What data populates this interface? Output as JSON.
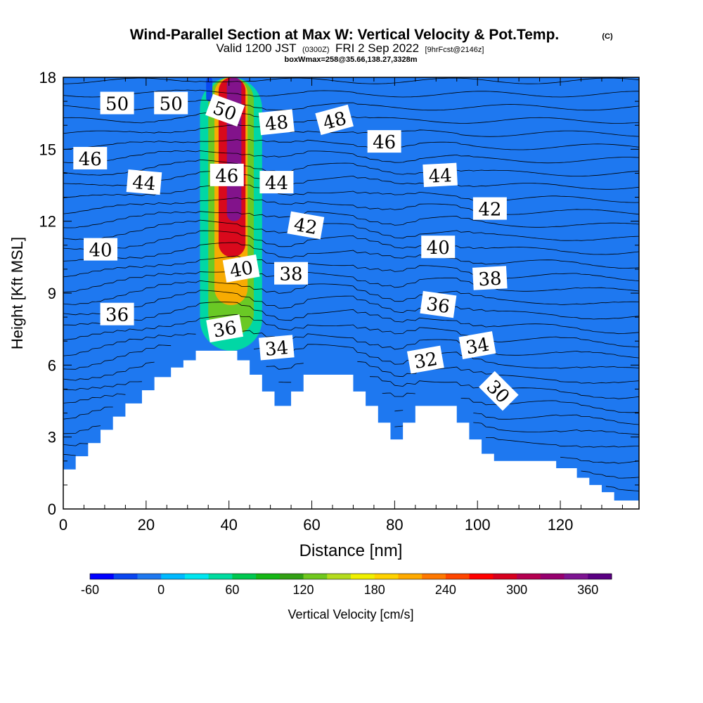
{
  "chart_data": {
    "type": "heatmap",
    "title": "Wind-Parallel Section at Max W: Vertical Velocity & Pot.Temp.",
    "title_mark": "(C)",
    "subtitle_main": "Valid 1200 JST",
    "subtitle_utc": "(0300Z)",
    "subtitle_date": "FRI 2 Sep 2022",
    "subtitle_fcst": "[9hrFcst@2146z]",
    "subtitle_box": "boxWmax=258@35.66,138.27,3328m",
    "xlabel": "Distance [nm]",
    "ylabel": "Height [Kft MSL]",
    "xlim": [
      0,
      139
    ],
    "ylim": [
      0,
      18
    ],
    "x_ticks": [
      0,
      20,
      40,
      60,
      80,
      100,
      120
    ],
    "y_ticks": [
      0,
      3,
      6,
      9,
      12,
      15,
      18
    ],
    "colorbar": {
      "label": "Vertical Velocity [cm/s]",
      "min": -60,
      "max": 380,
      "step": 20,
      "tick_values": [
        -60,
        0,
        60,
        120,
        180,
        240,
        300,
        360
      ],
      "colors": [
        "#0000ff",
        "#0a46f0",
        "#1e78f0",
        "#00b9ff",
        "#00e6f0",
        "#00dca0",
        "#00c850",
        "#16b716",
        "#32a014",
        "#70c81e",
        "#b4dc1e",
        "#f0f000",
        "#ffd200",
        "#ffaa00",
        "#ff7800",
        "#ff4600",
        "#ff0000",
        "#d7001e",
        "#b40050",
        "#96006e",
        "#7d1491",
        "#5a0082"
      ]
    },
    "vertical_velocity_field": {
      "background": "#1e78f0",
      "regions": [
        {
          "name": "updraft-edge",
          "value_cms": 40,
          "x": [
            33,
            48
          ],
          "y": [
            6.6,
            18
          ]
        },
        {
          "name": "updraft-inner",
          "value_cms": 120,
          "x": [
            35,
            46
          ],
          "y": [
            7.2,
            18
          ]
        },
        {
          "name": "updraft-mid",
          "value_cms": 200,
          "x": [
            36.5,
            44.5
          ],
          "y": [
            8.5,
            18
          ]
        },
        {
          "name": "updraft-strong",
          "value_cms": 280,
          "x": [
            37.5,
            44
          ],
          "y": [
            10.5,
            18
          ]
        },
        {
          "name": "updraft-core",
          "value_cms": 340,
          "x": [
            39.5,
            43
          ],
          "y": [
            12,
            18
          ]
        },
        {
          "name": "downdraft-edge",
          "value_cms": -40,
          "x": [
            34.5,
            36
          ],
          "y": [
            17,
            18
          ]
        }
      ]
    },
    "potential_temperature_contour_labels": [
      {
        "text": "50",
        "x": 13,
        "y": 16.9,
        "angle": 0
      },
      {
        "text": "50",
        "x": 26,
        "y": 16.9,
        "angle": 0
      },
      {
        "text": "50",
        "x": 39,
        "y": 16.6,
        "angle": 20
      },
      {
        "text": "48",
        "x": 51.5,
        "y": 16.1,
        "angle": -6
      },
      {
        "text": "48",
        "x": 65.5,
        "y": 16.2,
        "angle": -15
      },
      {
        "text": "46",
        "x": 77.5,
        "y": 15.3,
        "angle": 0
      },
      {
        "text": "46",
        "x": 6.5,
        "y": 14.6,
        "angle": 0
      },
      {
        "text": "44",
        "x": 19.5,
        "y": 13.6,
        "angle": 5
      },
      {
        "text": "46",
        "x": 39.5,
        "y": 13.9,
        "angle": 0
      },
      {
        "text": "44",
        "x": 51.5,
        "y": 13.6,
        "angle": 0
      },
      {
        "text": "44",
        "x": 91,
        "y": 13.9,
        "angle": -3
      },
      {
        "text": "42",
        "x": 103,
        "y": 12.5,
        "angle": 0
      },
      {
        "text": "42",
        "x": 58.5,
        "y": 11.8,
        "angle": 10
      },
      {
        "text": "40",
        "x": 9,
        "y": 10.8,
        "angle": 0
      },
      {
        "text": "40",
        "x": 43,
        "y": 10,
        "angle": -10
      },
      {
        "text": "38",
        "x": 55,
        "y": 9.8,
        "angle": 0
      },
      {
        "text": "40",
        "x": 90.5,
        "y": 10.9,
        "angle": 0
      },
      {
        "text": "38",
        "x": 103,
        "y": 9.6,
        "angle": -3
      },
      {
        "text": "36",
        "x": 13,
        "y": 8.1,
        "angle": 0
      },
      {
        "text": "36",
        "x": 90.5,
        "y": 8.5,
        "angle": 8
      },
      {
        "text": "36",
        "x": 39,
        "y": 7.5,
        "angle": -10
      },
      {
        "text": "34",
        "x": 51.5,
        "y": 6.7,
        "angle": -5
      },
      {
        "text": "34",
        "x": 100,
        "y": 6.8,
        "angle": -10
      },
      {
        "text": "32",
        "x": 87.5,
        "y": 6.2,
        "angle": -10
      },
      {
        "text": "30",
        "x": 105,
        "y": 4.9,
        "angle": 45
      }
    ],
    "terrain_profile": [
      {
        "x": 0,
        "y": 1.65
      },
      {
        "x": 3,
        "y": 2.2
      },
      {
        "x": 6,
        "y": 2.75
      },
      {
        "x": 9,
        "y": 3.3
      },
      {
        "x": 12,
        "y": 3.85
      },
      {
        "x": 15,
        "y": 4.4
      },
      {
        "x": 19,
        "y": 4.95
      },
      {
        "x": 22,
        "y": 5.5
      },
      {
        "x": 26,
        "y": 5.9
      },
      {
        "x": 29,
        "y": 6.2
      },
      {
        "x": 32,
        "y": 6.6
      },
      {
        "x": 38,
        "y": 6.6
      },
      {
        "x": 42,
        "y": 6.2
      },
      {
        "x": 45,
        "y": 5.6
      },
      {
        "x": 48,
        "y": 4.9
      },
      {
        "x": 51,
        "y": 4.3
      },
      {
        "x": 55,
        "y": 4.9
      },
      {
        "x": 58,
        "y": 5.6
      },
      {
        "x": 67,
        "y": 5.6
      },
      {
        "x": 70,
        "y": 4.9
      },
      {
        "x": 73,
        "y": 4.3
      },
      {
        "x": 76,
        "y": 3.6
      },
      {
        "x": 79,
        "y": 2.9
      },
      {
        "x": 82,
        "y": 3.6
      },
      {
        "x": 85,
        "y": 4.3
      },
      {
        "x": 88,
        "y": 4.3
      },
      {
        "x": 92,
        "y": 4.3
      },
      {
        "x": 95,
        "y": 3.6
      },
      {
        "x": 98,
        "y": 2.9
      },
      {
        "x": 101,
        "y": 2.3
      },
      {
        "x": 104,
        "y": 2.0
      },
      {
        "x": 115,
        "y": 2.0
      },
      {
        "x": 119,
        "y": 1.7
      },
      {
        "x": 124,
        "y": 1.3
      },
      {
        "x": 127,
        "y": 1.0
      },
      {
        "x": 130,
        "y": 0.7
      },
      {
        "x": 133,
        "y": 0.35
      },
      {
        "x": 139,
        "y": 0.35
      }
    ]
  }
}
